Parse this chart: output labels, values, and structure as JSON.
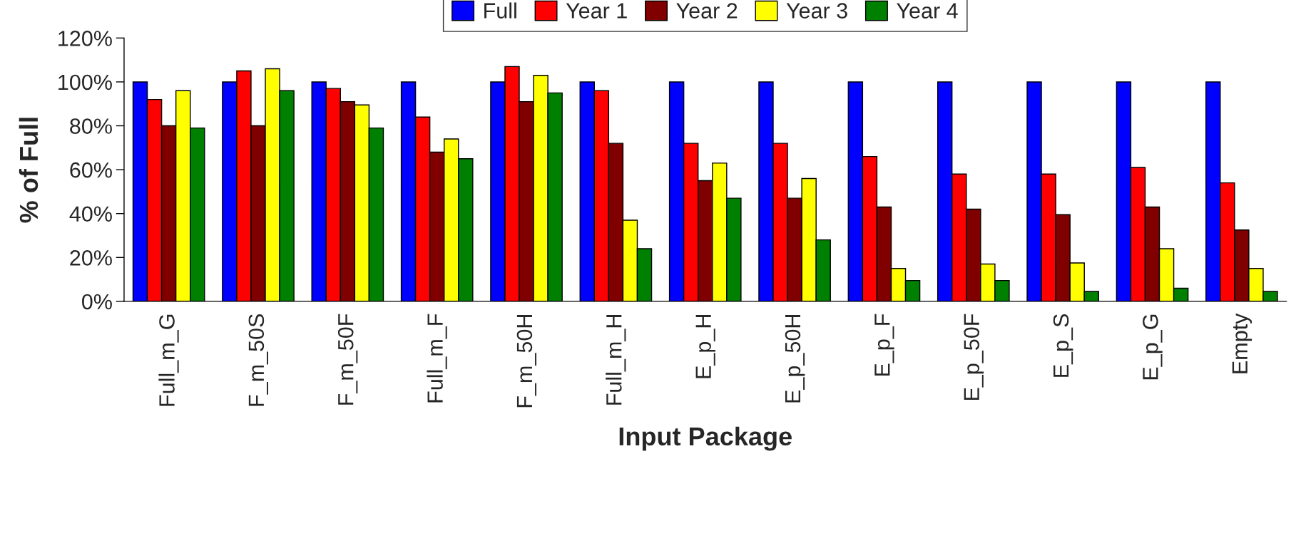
{
  "chart_data": {
    "type": "bar",
    "xlabel": "Input Package",
    "ylabel": "% of Full",
    "categories": [
      "Full_m_G",
      "F_m_50S",
      "F_m_50F",
      "Full_m_F",
      "F_m_50H",
      "Full_m_H",
      "E_p_H",
      "E_p_50H",
      "E_p_F",
      "E_p_50F",
      "E_p_S",
      "E_p_G",
      "Empty"
    ],
    "series": [
      {
        "name": "Full",
        "color": "#0000ff",
        "values": [
          100,
          100,
          100,
          100,
          100,
          100,
          100,
          100,
          100,
          100,
          100,
          100,
          100
        ]
      },
      {
        "name": "Year 1",
        "color": "#ff0000",
        "values": [
          92,
          105,
          97,
          84,
          107,
          96,
          72,
          72,
          66,
          58,
          58,
          61,
          54
        ]
      },
      {
        "name": "Year 2",
        "color": "#800000",
        "values": [
          80,
          80,
          91,
          68,
          91,
          72,
          55,
          47,
          43,
          42,
          39.5,
          43,
          32.5
        ]
      },
      {
        "name": "Year 3",
        "color": "#ffff00",
        "values": [
          96,
          106,
          89.5,
          74,
          103,
          37,
          63,
          56,
          15,
          17,
          17.5,
          24,
          15
        ]
      },
      {
        "name": "Year 4",
        "color": "#008000",
        "values": [
          79,
          96,
          79,
          65,
          95,
          24,
          47,
          28,
          9.5,
          9.5,
          4.5,
          6,
          4.5
        ]
      }
    ],
    "ylim": [
      0,
      120
    ],
    "yticks": [
      {
        "value": 0,
        "label": "0%"
      },
      {
        "value": 20,
        "label": "20%"
      },
      {
        "value": 40,
        "label": "40%"
      },
      {
        "value": 60,
        "label": "60%"
      },
      {
        "value": 80,
        "label": "80%"
      },
      {
        "value": 100,
        "label": "100%"
      },
      {
        "value": 120,
        "label": "120%"
      }
    ],
    "grid": false,
    "legend": "top"
  }
}
